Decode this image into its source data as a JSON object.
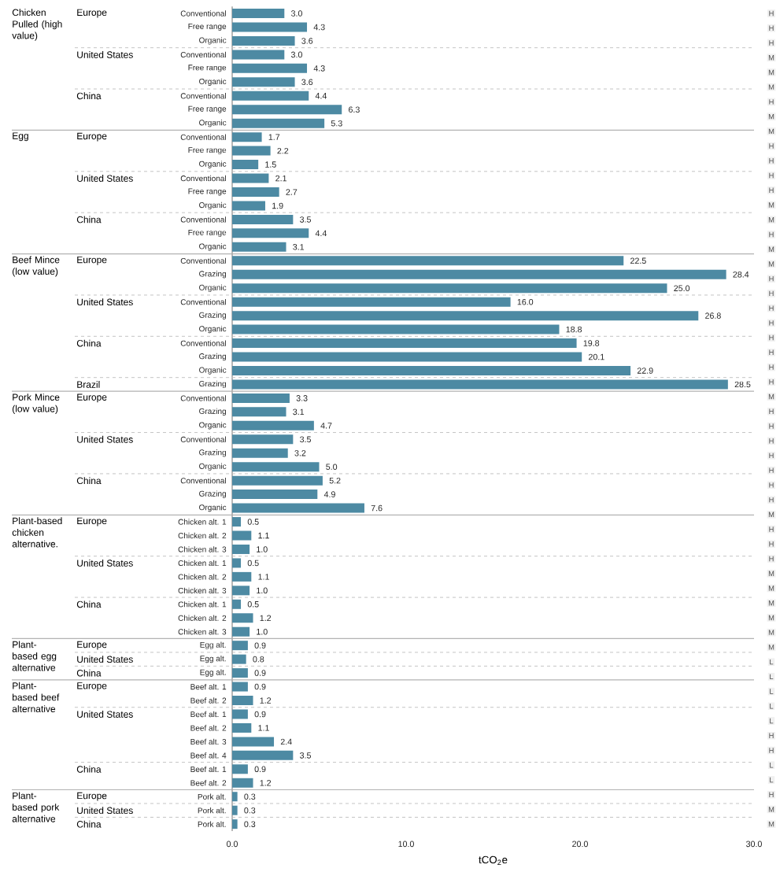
{
  "chart_data": [
    {
      "type": "bar",
      "orientation": "horizontal",
      "ylabel": "Europe",
      "annotations": [
        "Chicken Pulled (high value)"
      ],
      "categories": [
        "Conventional",
        "Free range",
        "Organic"
      ],
      "values": [
        3.0,
        4.3,
        3.6
      ],
      "value_labels": [
        "3.0",
        "4.3",
        "3.6"
      ],
      "color": "#4d8aa3",
      "xlim": [
        0,
        30
      ],
      "tick_labels": "y"
    },
    {
      "type": "bar",
      "orientation": "horizontal",
      "ylabel": "United States",
      "categories": [
        "Conventional",
        "Free range",
        "Organic"
      ],
      "values": [
        3.0,
        4.3,
        3.6
      ],
      "value_labels": [
        "3.0",
        "4.3",
        "3.6"
      ],
      "color": "#4d8aa3",
      "xlim": [
        0,
        30
      ],
      "tick_labels": "y"
    },
    {
      "type": "bar",
      "orientation": "horizontal",
      "ylabel": "China",
      "categories": [
        "Conventional",
        "Free range",
        "Organic"
      ],
      "values": [
        4.4,
        6.3,
        5.3
      ],
      "value_labels": [
        "4.4",
        "6.3",
        "5.3"
      ],
      "color": "#4d8aa3",
      "xlim": [
        0,
        30
      ],
      "tick_labels": "y"
    },
    {
      "type": "bar",
      "orientation": "horizontal",
      "ylabel": "Europe",
      "annotations": [
        "Egg"
      ],
      "categories": [
        "Conventional",
        "Free range",
        "Organic"
      ],
      "values": [
        1.7,
        2.2,
        1.5
      ],
      "value_labels": [
        "1.7",
        "2.2",
        "1.5"
      ],
      "color": "#4d8aa3",
      "xlim": [
        0,
        30
      ],
      "tick_labels": "y"
    },
    {
      "type": "bar",
      "orientation": "horizontal",
      "ylabel": "United States",
      "categories": [
        "Conventional",
        "Free range",
        "Organic"
      ],
      "values": [
        2.1,
        2.7,
        1.9
      ],
      "value_labels": [
        "2.1",
        "2.7",
        "1.9"
      ],
      "color": "#4d8aa3",
      "xlim": [
        0,
        30
      ],
      "tick_labels": "y"
    },
    {
      "type": "bar",
      "orientation": "horizontal",
      "ylabel": "China",
      "categories": [
        "Conventional",
        "Free range",
        "Organic"
      ],
      "values": [
        3.5,
        4.4,
        3.1
      ],
      "value_labels": [
        "3.5",
        "4.4",
        "3.1"
      ],
      "color": "#4d8aa3",
      "xlim": [
        0,
        30
      ],
      "tick_labels": "y"
    },
    {
      "type": "bar",
      "orientation": "horizontal",
      "ylabel": "Europe",
      "annotations": [
        "Beef Mince (low value)"
      ],
      "categories": [
        "Conventional",
        "Grazing",
        "Organic"
      ],
      "values": [
        22.5,
        28.4,
        25.0
      ],
      "value_labels": [
        "22.5",
        "28.4",
        "25.0"
      ],
      "color": "#4d8aa3",
      "xlim": [
        0,
        30
      ],
      "tick_labels": "y"
    },
    {
      "type": "bar",
      "orientation": "horizontal",
      "ylabel": "United States",
      "categories": [
        "Conventional",
        "Grazing",
        "Organic"
      ],
      "values": [
        16.0,
        26.8,
        18.8
      ],
      "value_labels": [
        "16.0",
        "26.8",
        "18.8"
      ],
      "color": "#4d8aa3",
      "xlim": [
        0,
        30
      ],
      "tick_labels": "y"
    },
    {
      "type": "bar",
      "orientation": "horizontal",
      "ylabel": "China",
      "categories": [
        "Conventional",
        "Grazing",
        "Organic"
      ],
      "values": [
        19.8,
        20.1,
        22.9
      ],
      "value_labels": [
        "19.8",
        "20.1",
        "22.9"
      ],
      "color": "#4d8aa3",
      "xlim": [
        0,
        30
      ],
      "tick_labels": "y"
    },
    {
      "type": "bar",
      "orientation": "horizontal",
      "ylabel": "Brazil",
      "categories": [
        "Grazing"
      ],
      "values": [
        28.5
      ],
      "value_labels": [
        "28.5"
      ],
      "color": "#4d8aa3",
      "xlim": [
        0,
        30
      ],
      "tick_labels": "y"
    },
    {
      "type": "bar",
      "orientation": "horizontal",
      "ylabel": "Europe",
      "annotations": [
        "Pork Mince (low value)"
      ],
      "categories": [
        "Conventional",
        "Grazing",
        "Organic"
      ],
      "values": [
        3.3,
        3.1,
        4.7
      ],
      "value_labels": [
        "3.3",
        "3.1",
        "4.7"
      ],
      "color": "#4d8aa3",
      "xlim": [
        0,
        30
      ],
      "tick_labels": "y"
    },
    {
      "type": "bar",
      "orientation": "horizontal",
      "ylabel": "United States",
      "categories": [
        "Conventional",
        "Grazing",
        "Organic"
      ],
      "values": [
        3.5,
        3.2,
        5.0
      ],
      "value_labels": [
        "3.5",
        "3.2",
        "5.0"
      ],
      "color": "#4d8aa3",
      "xlim": [
        0,
        30
      ],
      "tick_labels": "y"
    },
    {
      "type": "bar",
      "orientation": "horizontal",
      "ylabel": "China",
      "categories": [
        "Conventional",
        "Grazing",
        "Organic"
      ],
      "values": [
        5.2,
        4.9,
        7.6
      ],
      "value_labels": [
        "5.2",
        "4.9",
        "7.6"
      ],
      "color": "#4d8aa3",
      "xlim": [
        0,
        30
      ],
      "tick_labels": "y"
    },
    {
      "type": "bar",
      "orientation": "horizontal",
      "ylabel": "Europe",
      "annotations": [
        "Plant-based chicken alternative."
      ],
      "categories": [
        "Chicken alt. 1",
        "Chicken alt. 2",
        "Chicken alt. 3"
      ],
      "values": [
        0.5,
        1.1,
        1.0
      ],
      "value_labels": [
        "0.5",
        "1.1",
        "1.0"
      ],
      "color": "#4d8aa3",
      "xlim": [
        0,
        30
      ],
      "tick_labels": "y"
    },
    {
      "type": "bar",
      "orientation": "horizontal",
      "ylabel": "United States",
      "categories": [
        "Chicken alt. 1",
        "Chicken alt. 2",
        "Chicken alt. 3"
      ],
      "values": [
        0.5,
        1.1,
        1.0
      ],
      "value_labels": [
        "0.5",
        "1.1",
        "1.0"
      ],
      "color": "#4d8aa3",
      "xlim": [
        0,
        30
      ],
      "tick_labels": "y"
    },
    {
      "type": "bar",
      "orientation": "horizontal",
      "ylabel": "China",
      "categories": [
        "Chicken alt. 1",
        "Chicken alt. 2",
        "Chicken alt. 3"
      ],
      "values": [
        0.5,
        1.2,
        1.0
      ],
      "value_labels": [
        "0.5",
        "1.2",
        "1.0"
      ],
      "color": "#4d8aa3",
      "xlim": [
        0,
        30
      ],
      "tick_labels": "y"
    },
    {
      "type": "bar",
      "orientation": "horizontal",
      "ylabel": "Europe",
      "annotations": [
        "Plant-based egg alternative"
      ],
      "categories": [
        "Egg alt."
      ],
      "values": [
        0.9
      ],
      "value_labels": [
        "0.9"
      ],
      "color": "#4d8aa3",
      "xlim": [
        0,
        30
      ],
      "tick_labels": "y"
    },
    {
      "type": "bar",
      "orientation": "horizontal",
      "ylabel": "United States",
      "categories": [
        "Egg alt."
      ],
      "values": [
        0.8
      ],
      "value_labels": [
        "0.8"
      ],
      "color": "#4d8aa3",
      "xlim": [
        0,
        30
      ],
      "tick_labels": "y"
    },
    {
      "type": "bar",
      "orientation": "horizontal",
      "ylabel": "China",
      "categories": [
        "Egg alt."
      ],
      "values": [
        0.9
      ],
      "value_labels": [
        "0.9"
      ],
      "color": "#4d8aa3",
      "xlim": [
        0,
        30
      ],
      "tick_labels": "y"
    },
    {
      "type": "bar",
      "orientation": "horizontal",
      "ylabel": "Europe",
      "annotations": [
        "Plant-based beef alternative"
      ],
      "categories": [
        "Beef alt. 1",
        "Beef alt. 2"
      ],
      "values": [
        0.9,
        1.2
      ],
      "value_labels": [
        "0.9",
        "1.2"
      ],
      "color": "#4d8aa3",
      "xlim": [
        0,
        30
      ],
      "tick_labels": "y"
    },
    {
      "type": "bar",
      "orientation": "horizontal",
      "ylabel": "United States",
      "categories": [
        "Beef alt. 1",
        "Beef alt. 2",
        "Beef alt. 3",
        "Beef alt. 4"
      ],
      "values": [
        0.9,
        1.1,
        2.4,
        3.5
      ],
      "value_labels": [
        "0.9",
        "1.1",
        "2.4",
        "3.5"
      ],
      "color": "#4d8aa3",
      "xlim": [
        0,
        30
      ],
      "tick_labels": "y"
    },
    {
      "type": "bar",
      "orientation": "horizontal",
      "ylabel": "China",
      "categories": [
        "Beef alt. 1",
        "Beef alt. 2"
      ],
      "values": [
        0.9,
        1.2
      ],
      "value_labels": [
        "0.9",
        "1.2"
      ],
      "color": "#4d8aa3",
      "xlim": [
        0,
        30
      ],
      "tick_labels": "y"
    },
    {
      "type": "bar",
      "orientation": "horizontal",
      "ylabel": "Europe",
      "annotations": [
        "Plant-based pork alternative"
      ],
      "categories": [
        "Pork alt."
      ],
      "values": [
        0.3
      ],
      "value_labels": [
        "0.3"
      ],
      "color": "#4d8aa3",
      "xlim": [
        0,
        30
      ],
      "tick_labels": "y"
    },
    {
      "type": "bar",
      "orientation": "horizontal",
      "ylabel": "United States",
      "categories": [
        "Pork alt."
      ],
      "values": [
        0.3
      ],
      "value_labels": [
        "0.3"
      ],
      "color": "#4d8aa3",
      "xlim": [
        0,
        30
      ],
      "tick_labels": "y"
    },
    {
      "type": "bar",
      "orientation": "horizontal",
      "ylabel": "China",
      "xlabel": "tCO$_{2}$e",
      "categories": [
        "Pork alt."
      ],
      "values": [
        0.3
      ],
      "value_labels": [
        "0.3"
      ],
      "color": "#4d8aa3",
      "xlim": [
        0,
        30
      ],
      "xticks": [
        {
          "value": 0,
          "label": "0.0"
        },
        {
          "value": 10,
          "label": "10.0"
        },
        {
          "value": 20,
          "label": "20.0"
        },
        {
          "value": 30,
          "label": "30.0"
        }
      ]
    },
    {
      "type": "other",
      "annotations": [
        "H",
        "H",
        "H",
        "M",
        "M",
        "M",
        "H",
        "M",
        "M",
        "H",
        "H",
        "H",
        "H",
        "M",
        "M",
        "H",
        "M",
        "M",
        "H",
        "H",
        "H",
        "H",
        "H",
        "H",
        "H",
        "H",
        "M",
        "H",
        "H",
        "H",
        "H",
        "H",
        "H",
        "H",
        "M",
        "H",
        "H",
        "H",
        "M",
        "M",
        "M",
        "M",
        "M",
        "M",
        "L",
        "L",
        "L",
        "L",
        "L",
        "H",
        "H",
        "L",
        "L",
        "H",
        "M",
        "M"
      ]
    }
  ]
}
